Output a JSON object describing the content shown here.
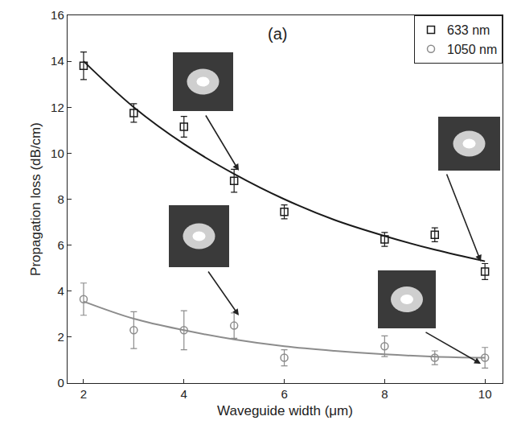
{
  "chart_data": {
    "type": "scatter",
    "annotation": "(a)",
    "xlabel": "Waveguide width (μm)",
    "ylabel": "Propagation loss (dB/cm)",
    "xlim": [
      1.68,
      10.35
    ],
    "ylim": [
      0,
      16
    ],
    "xticks": [
      2,
      4,
      6,
      8,
      10
    ],
    "yticks": [
      0,
      2,
      4,
      6,
      8,
      10,
      12,
      14,
      16
    ],
    "grid": false,
    "legend": "top right",
    "series": [
      {
        "name": "633 nm",
        "type": "scatter",
        "marker": "square-open",
        "color": "#1a1a1a",
        "x": [
          2,
          3,
          4,
          5,
          6,
          8,
          9,
          10
        ],
        "values": [
          13.8,
          11.75,
          11.15,
          8.8,
          7.45,
          6.25,
          6.45,
          4.85
        ],
        "errors": [
          0.6,
          0.4,
          0.45,
          0.5,
          0.3,
          0.3,
          0.3,
          0.35
        ]
      },
      {
        "name": "1050 nm",
        "type": "scatter",
        "marker": "circle-open",
        "color": "#8c8c8c",
        "x": [
          2,
          3,
          4,
          5,
          6,
          8,
          9,
          10
        ],
        "values": [
          3.65,
          2.3,
          2.3,
          2.5,
          1.1,
          1.6,
          1.1,
          1.1
        ],
        "errors": [
          0.7,
          0.8,
          0.85,
          0.55,
          0.35,
          0.45,
          0.3,
          0.45
        ]
      },
      {
        "type": "line",
        "line_style": "solid",
        "color": "#1a1a1a",
        "x": [
          2,
          3,
          4,
          5,
          6,
          7,
          8,
          9,
          10
        ],
        "values": [
          14.0,
          12.0,
          10.4,
          9.1,
          8.0,
          7.1,
          6.4,
          5.8,
          5.3
        ]
      },
      {
        "type": "line",
        "line_style": "solid",
        "color": "#8c8c8c",
        "x": [
          2,
          3,
          4,
          5,
          6,
          7,
          8,
          9,
          10
        ],
        "values": [
          3.55,
          2.8,
          2.3,
          1.9,
          1.6,
          1.4,
          1.25,
          1.15,
          1.1
        ]
      }
    ]
  }
}
